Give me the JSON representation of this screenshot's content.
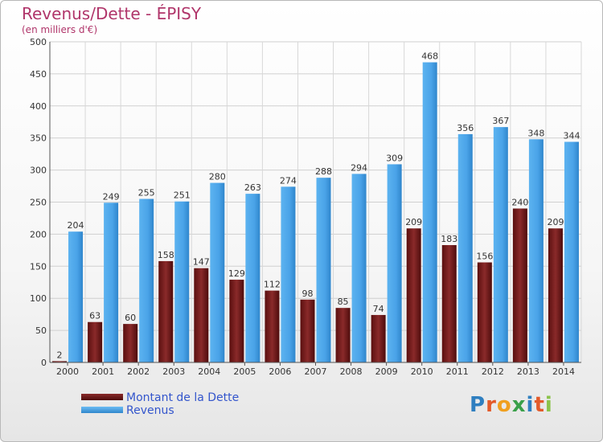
{
  "chart_data": {
    "type": "bar",
    "title": "Revenus/Dette - ÉPISY",
    "subtitle": "(en milliers d'€)",
    "categories": [
      "2000",
      "2001",
      "2002",
      "2003",
      "2004",
      "2005",
      "2006",
      "2007",
      "2008",
      "2009",
      "2010",
      "2011",
      "2012",
      "2013",
      "2014"
    ],
    "series": [
      {
        "name": "Montant de la Dette",
        "color": "#7a1f1f",
        "values": [
          2,
          63,
          60,
          158,
          147,
          129,
          112,
          98,
          85,
          74,
          209,
          183,
          156,
          240,
          209
        ]
      },
      {
        "name": "Revenus",
        "color": "#4aa3e8",
        "values": [
          204,
          249,
          255,
          251,
          280,
          263,
          274,
          288,
          294,
          309,
          468,
          356,
          367,
          348,
          344
        ]
      }
    ],
    "ylim": [
      0,
      500
    ],
    "yticks": [
      0,
      50,
      100,
      150,
      200,
      250,
      300,
      350,
      400,
      450,
      500
    ],
    "grid": true,
    "legend": "bottom-left"
  },
  "logo": {
    "letters": [
      "P",
      "r",
      "o",
      "x",
      "i",
      "t",
      "i"
    ]
  }
}
